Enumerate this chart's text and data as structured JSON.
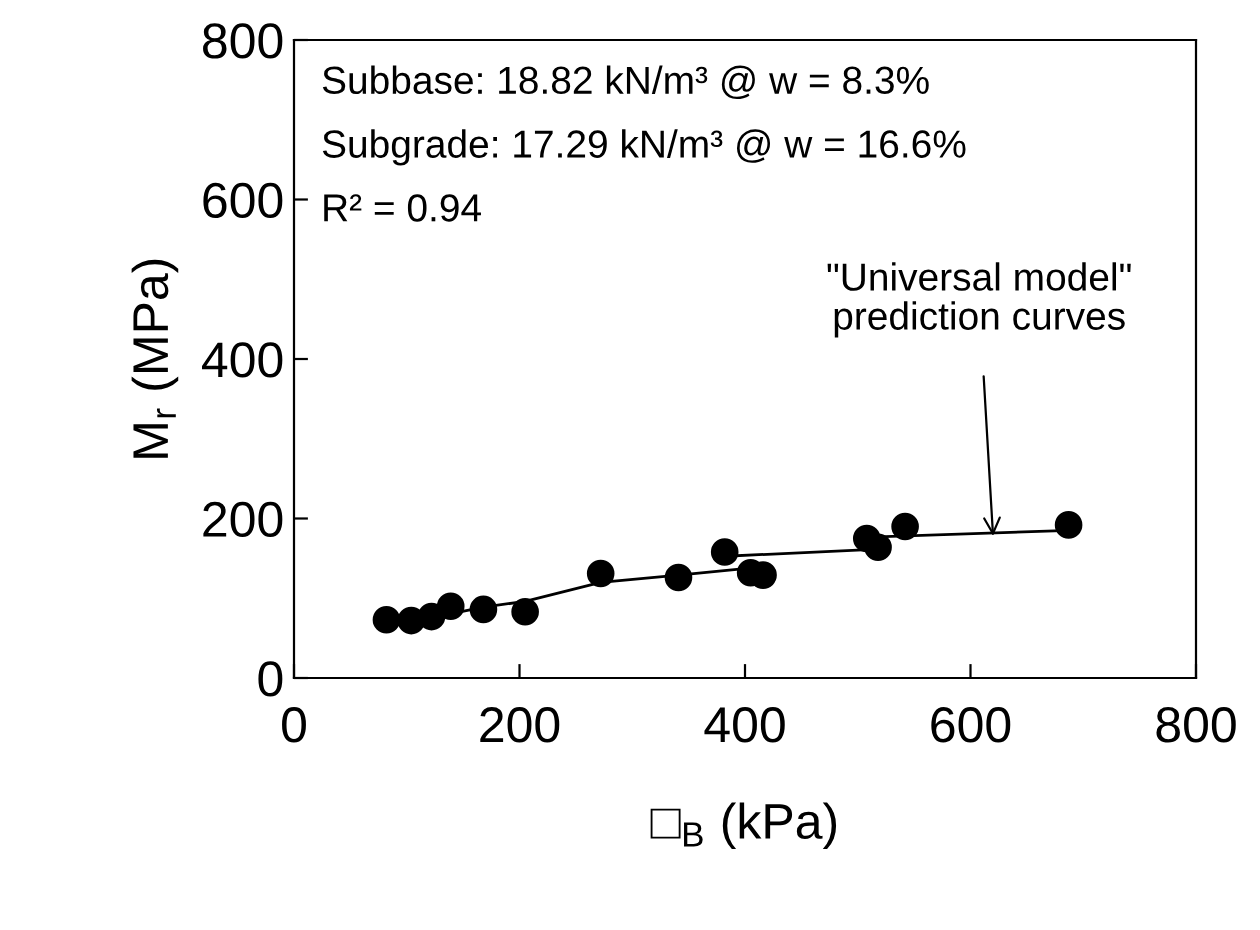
{
  "chart_data": {
    "type": "scatter",
    "xlabel": "□$_{B}$ (kPa)",
    "ylabel": "M$_{r}$ (MPa)",
    "xlim": [
      0,
      800
    ],
    "ylim": [
      0,
      800
    ],
    "xticks": [
      0,
      200,
      400,
      600,
      800
    ],
    "yticks": [
      0,
      200,
      400,
      600,
      800
    ],
    "grid": false,
    "legend": false,
    "annotations": [
      "Subbase: 18.82 kN/m³ @ w = 8.3%",
      "Subgrade: 17.29 kN/m³ @ w = 16.6%",
      "R² = 0.94",
      {
        "text": "\"Universal model\"\nprediction curves",
        "x": 620,
        "y": 178
      }
    ],
    "series": [
      {
        "color": "#000000",
        "marker": "circle",
        "x": [
          82,
          104,
          122,
          139,
          168,
          205,
          272,
          341,
          382,
          405,
          416,
          508,
          518,
          542,
          687
        ],
        "values": [
          73,
          72,
          77,
          90,
          86,
          83,
          131,
          126,
          158,
          132,
          129,
          175,
          164,
          190,
          192
        ]
      },
      {
        "type": "line",
        "color": "#000000",
        "marker": "none",
        "line_style": "solid",
        "x": [
          82,
          168,
          205,
          272,
          341,
          405
        ],
        "values": [
          64,
          89,
          96,
          120,
          129,
          138
        ]
      },
      {
        "type": "line",
        "color": "#000000",
        "marker": "none",
        "line_style": "solid",
        "x": [
          388,
          508
        ],
        "values": [
          153,
          161
        ]
      },
      {
        "type": "line",
        "color": "#000000",
        "marker": "none",
        "line_style": "solid",
        "x": [
          518,
          687
        ],
        "values": [
          177,
          185
        ]
      }
    ]
  }
}
